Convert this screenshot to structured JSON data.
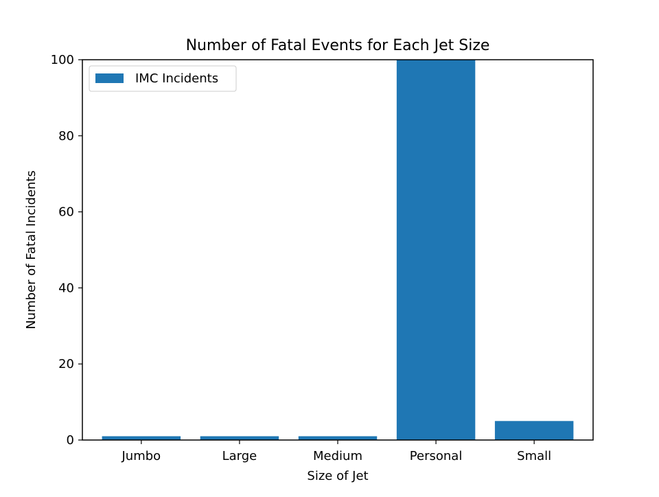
{
  "chart_data": {
    "type": "bar",
    "title": "Number of Fatal Events for Each Jet Size",
    "xlabel": "Size of Jet",
    "ylabel": "Number of Fatal Incidents",
    "categories": [
      "Jumbo",
      "Large",
      "Medium",
      "Personal",
      "Small"
    ],
    "series": [
      {
        "name": "IMC Incidents",
        "values": [
          1,
          1,
          1,
          100,
          5
        ],
        "color": "#1f77b4"
      }
    ],
    "ylim": [
      0,
      100
    ],
    "yticks": [
      0,
      20,
      40,
      60,
      80,
      100
    ],
    "grid": false,
    "legend_position": "top-left"
  }
}
